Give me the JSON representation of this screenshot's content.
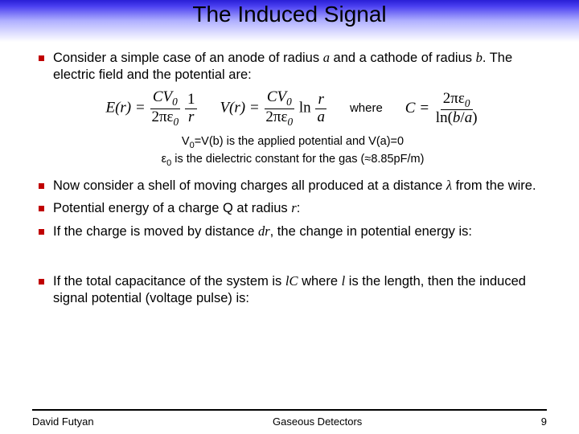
{
  "colors": {
    "band_gradient_top": "#2a1fd6",
    "band_gradient_mid": "#b0b0ff",
    "band_gradient_bottom": "#ffffff",
    "bullet_color": "#c00000",
    "text_color": "#000000",
    "footer_line_color": "#000000"
  },
  "fonts": {
    "body_family": "Arial",
    "math_family": "Times New Roman",
    "title_size_pt": 21,
    "body_size_pt": 12,
    "subnote_size_pt": 11,
    "footer_size_pt": 10
  },
  "title": "The Induced Signal",
  "bullets": {
    "b1_prefix": "Consider a simple case of an anode of radius ",
    "b1_var_a": "a",
    "b1_mid": " and a cathode of radius ",
    "b1_var_b": "b",
    "b1_suffix": ". The electric field and the potential are:",
    "b2_prefix": "Now consider a shell of moving charges all produced at a distance ",
    "b2_lambda": "λ",
    "b2_suffix": " from the wire.",
    "b3_prefix": "Potential energy of a charge Q at radius ",
    "b3_r": "r",
    "b3_suffix": ":",
    "b4_prefix": "If the charge is moved by distance ",
    "b4_dr": "dr",
    "b4_suffix": ", the change in potential energy is:",
    "b5_prefix": "If the total capacitance of the system is ",
    "b5_lC": "lC",
    "b5_mid": " where ",
    "b5_l": "l",
    "b5_suffix": " is the length, then the induced signal potential (voltage pulse) is:"
  },
  "equations": {
    "E_label": "E(r) =",
    "E_num": "CV",
    "E_num_sub": "0",
    "E_den": "2πε",
    "E_den_sub": "0",
    "one_over_r_num": "1",
    "one_over_r_den": "r",
    "V_label": "V(r) =",
    "V_num": "CV",
    "V_num_sub": "0",
    "V_den": "2πε",
    "V_den_sub": "0",
    "ln": "ln",
    "ra_num": "r",
    "ra_den": "a",
    "where": "where",
    "C_label": "C =",
    "C_num": "2πε",
    "C_num_sub": "0",
    "C_den_ln": "ln(",
    "C_den_b": "b",
    "C_den_slash": "/",
    "C_den_a": "a",
    "C_den_close": ")"
  },
  "subnote": {
    "line1_pre": "V",
    "line1_sub0": "0",
    "line1_mid": "=V(b) is the applied potential and V(a)=0",
    "line2_eps": "ε",
    "line2_sub0": "0",
    "line2_rest": " is the dielectric constant for the gas (≈8.85pF/m)"
  },
  "footer": {
    "author": "David Futyan",
    "center": "Gaseous Detectors",
    "page": "9"
  }
}
